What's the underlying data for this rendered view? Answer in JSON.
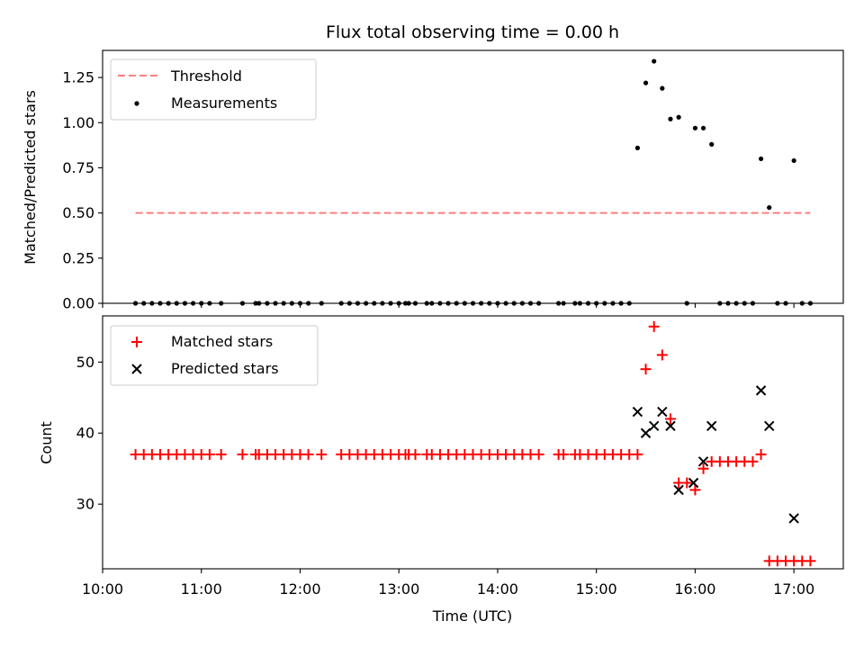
{
  "chart_data": [
    {
      "type": "scatter",
      "title": "Flux total observing time = 0.00 h",
      "xlabel": "",
      "ylabel": "Matched/Predicted stars",
      "xlim": [
        "10:00",
        "17:30"
      ],
      "ylim": [
        0,
        1.4
      ],
      "yticks": [
        "0.00",
        "0.25",
        "0.50",
        "0.75",
        "1.00",
        "1.25"
      ],
      "legend_position": "top-left",
      "legend": [
        {
          "label": "Threshold",
          "style": "dashed-line",
          "color": "#ff7f7f"
        },
        {
          "label": "Measurements",
          "style": "dot",
          "color": "#000000"
        }
      ],
      "series": [
        {
          "name": "Threshold",
          "kind": "line",
          "x": [
            "10:20",
            "17:10"
          ],
          "y": [
            0.5,
            0.5
          ]
        },
        {
          "name": "Measurements",
          "kind": "scatter",
          "points": [
            [
              "10:20",
              0
            ],
            [
              "10:25",
              0
            ],
            [
              "10:30",
              0
            ],
            [
              "10:35",
              0
            ],
            [
              "10:40",
              0
            ],
            [
              "10:45",
              0
            ],
            [
              "10:50",
              0
            ],
            [
              "10:55",
              0
            ],
            [
              "11:00",
              0
            ],
            [
              "11:05",
              0
            ],
            [
              "11:12",
              0
            ],
            [
              "11:25",
              0
            ],
            [
              "11:33",
              0
            ],
            [
              "11:35",
              0
            ],
            [
              "11:40",
              0
            ],
            [
              "11:45",
              0
            ],
            [
              "11:50",
              0
            ],
            [
              "11:55",
              0
            ],
            [
              "12:00",
              0
            ],
            [
              "12:05",
              0
            ],
            [
              "12:13",
              0
            ],
            [
              "12:25",
              0
            ],
            [
              "12:30",
              0
            ],
            [
              "12:35",
              0
            ],
            [
              "12:40",
              0
            ],
            [
              "12:45",
              0
            ],
            [
              "12:50",
              0
            ],
            [
              "12:55",
              0
            ],
            [
              "13:00",
              0
            ],
            [
              "13:04",
              0
            ],
            [
              "13:06",
              0
            ],
            [
              "13:10",
              0
            ],
            [
              "13:17",
              0
            ],
            [
              "13:20",
              0
            ],
            [
              "13:25",
              0
            ],
            [
              "13:30",
              0
            ],
            [
              "13:35",
              0
            ],
            [
              "13:40",
              0
            ],
            [
              "13:45",
              0
            ],
            [
              "13:50",
              0
            ],
            [
              "13:55",
              0
            ],
            [
              "14:00",
              0
            ],
            [
              "14:05",
              0
            ],
            [
              "14:10",
              0
            ],
            [
              "14:15",
              0
            ],
            [
              "14:20",
              0
            ],
            [
              "14:25",
              0
            ],
            [
              "14:37",
              0
            ],
            [
              "14:40",
              0
            ],
            [
              "14:47",
              0
            ],
            [
              "14:50",
              0
            ],
            [
              "14:55",
              0
            ],
            [
              "15:00",
              0
            ],
            [
              "15:05",
              0
            ],
            [
              "15:10",
              0
            ],
            [
              "15:15",
              0
            ],
            [
              "15:20",
              0
            ],
            [
              "15:25",
              0.86
            ],
            [
              "15:30",
              1.22
            ],
            [
              "15:35",
              1.34
            ],
            [
              "15:40",
              1.19
            ],
            [
              "15:45",
              1.02
            ],
            [
              "15:50",
              1.03
            ],
            [
              "15:55",
              0
            ],
            [
              "16:00",
              0.97
            ],
            [
              "16:05",
              0.97
            ],
            [
              "16:10",
              0.88
            ],
            [
              "16:15",
              0
            ],
            [
              "16:20",
              0
            ],
            [
              "16:25",
              0
            ],
            [
              "16:30",
              0
            ],
            [
              "16:35",
              0
            ],
            [
              "16:40",
              0.8
            ],
            [
              "16:45",
              0.53
            ],
            [
              "16:50",
              0
            ],
            [
              "16:55",
              0
            ],
            [
              "17:00",
              0.79
            ],
            [
              "17:05",
              0
            ],
            [
              "17:10",
              0
            ]
          ]
        }
      ]
    },
    {
      "type": "scatter",
      "title": "",
      "xlabel": "Time (UTC)",
      "ylabel": "Count",
      "xlim": [
        "10:00",
        "17:30"
      ],
      "ylim": [
        20.9,
        56.5
      ],
      "yticks": [
        "30",
        "40",
        "50"
      ],
      "xticks": [
        "10:00",
        "11:00",
        "12:00",
        "13:00",
        "14:00",
        "15:00",
        "16:00",
        "17:00"
      ],
      "legend_position": "top-left",
      "legend": [
        {
          "label": "Matched stars",
          "style": "plus",
          "color": "#ff0000"
        },
        {
          "label": "Predicted stars",
          "style": "x",
          "color": "#000000"
        }
      ],
      "series": [
        {
          "name": "Matched stars",
          "marker": "plus",
          "points": [
            [
              "10:20",
              37
            ],
            [
              "10:25",
              37
            ],
            [
              "10:30",
              37
            ],
            [
              "10:35",
              37
            ],
            [
              "10:40",
              37
            ],
            [
              "10:45",
              37
            ],
            [
              "10:50",
              37
            ],
            [
              "10:55",
              37
            ],
            [
              "11:00",
              37
            ],
            [
              "11:05",
              37
            ],
            [
              "11:12",
              37
            ],
            [
              "11:25",
              37
            ],
            [
              "11:33",
              37
            ],
            [
              "11:35",
              37
            ],
            [
              "11:40",
              37
            ],
            [
              "11:45",
              37
            ],
            [
              "11:50",
              37
            ],
            [
              "11:55",
              37
            ],
            [
              "12:00",
              37
            ],
            [
              "12:05",
              37
            ],
            [
              "12:13",
              37
            ],
            [
              "12:25",
              37
            ],
            [
              "12:30",
              37
            ],
            [
              "12:35",
              37
            ],
            [
              "12:40",
              37
            ],
            [
              "12:45",
              37
            ],
            [
              "12:50",
              37
            ],
            [
              "12:55",
              37
            ],
            [
              "13:00",
              37
            ],
            [
              "13:04",
              37
            ],
            [
              "13:06",
              37
            ],
            [
              "13:10",
              37
            ],
            [
              "13:17",
              37
            ],
            [
              "13:20",
              37
            ],
            [
              "13:25",
              37
            ],
            [
              "13:30",
              37
            ],
            [
              "13:35",
              37
            ],
            [
              "13:40",
              37
            ],
            [
              "13:45",
              37
            ],
            [
              "13:50",
              37
            ],
            [
              "13:55",
              37
            ],
            [
              "14:00",
              37
            ],
            [
              "14:05",
              37
            ],
            [
              "14:10",
              37
            ],
            [
              "14:15",
              37
            ],
            [
              "14:20",
              37
            ],
            [
              "14:25",
              37
            ],
            [
              "14:37",
              37
            ],
            [
              "14:40",
              37
            ],
            [
              "14:47",
              37
            ],
            [
              "14:50",
              37
            ],
            [
              "14:55",
              37
            ],
            [
              "15:00",
              37
            ],
            [
              "15:05",
              37
            ],
            [
              "15:10",
              37
            ],
            [
              "15:15",
              37
            ],
            [
              "15:20",
              37
            ],
            [
              "15:25",
              37
            ],
            [
              "15:30",
              49
            ],
            [
              "15:35",
              55
            ],
            [
              "15:40",
              51
            ],
            [
              "15:45",
              42
            ],
            [
              "15:50",
              33
            ],
            [
              "15:55",
              33
            ],
            [
              "16:00",
              32
            ],
            [
              "16:05",
              35
            ],
            [
              "16:10",
              36
            ],
            [
              "16:15",
              36
            ],
            [
              "16:20",
              36
            ],
            [
              "16:25",
              36
            ],
            [
              "16:30",
              36
            ],
            [
              "16:35",
              36
            ],
            [
              "16:40",
              37
            ],
            [
              "16:45",
              22
            ],
            [
              "16:50",
              22
            ],
            [
              "16:55",
              22
            ],
            [
              "17:00",
              22
            ],
            [
              "17:05",
              22
            ],
            [
              "17:10",
              22
            ]
          ]
        },
        {
          "name": "Predicted stars",
          "marker": "x",
          "points": [
            [
              "15:25",
              43
            ],
            [
              "15:30",
              40
            ],
            [
              "15:35",
              41
            ],
            [
              "15:40",
              43
            ],
            [
              "15:45",
              41
            ],
            [
              "15:50",
              32
            ],
            [
              "15:59",
              33
            ],
            [
              "16:05",
              36
            ],
            [
              "16:10",
              41
            ],
            [
              "16:40",
              46
            ],
            [
              "16:45",
              41
            ],
            [
              "17:00",
              28
            ]
          ]
        }
      ]
    }
  ]
}
